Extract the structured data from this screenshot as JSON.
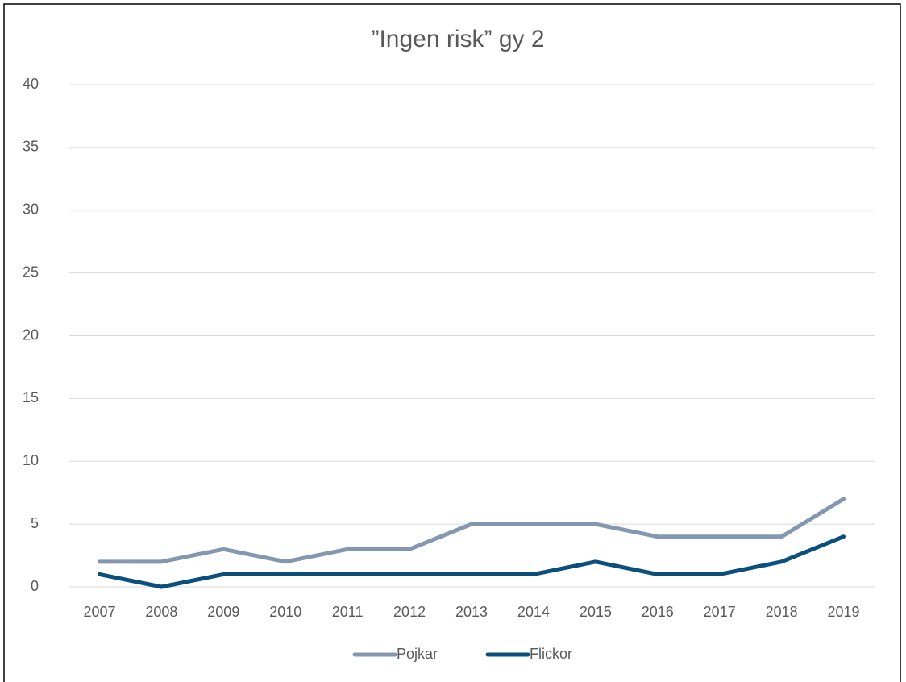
{
  "chart_data": {
    "type": "line",
    "title": "”Ingen risk” gy 2",
    "categories": [
      "2007",
      "2008",
      "2009",
      "2010",
      "2011",
      "2012",
      "2013",
      "2014",
      "2015",
      "2016",
      "2017",
      "2018",
      "2019"
    ],
    "series": [
      {
        "name": "Pojkar",
        "color": "#8497b0",
        "values": [
          2,
          2,
          3,
          2,
          3,
          3,
          5,
          5,
          5,
          4,
          4,
          4,
          7
        ]
      },
      {
        "name": "Flickor",
        "color": "#0b4f7c",
        "values": [
          1,
          0,
          1,
          1,
          1,
          1,
          1,
          1,
          2,
          1,
          1,
          2,
          4
        ]
      }
    ],
    "ylim": [
      0,
      40
    ],
    "yticks": [
      0,
      5,
      10,
      15,
      20,
      25,
      30,
      35,
      40
    ],
    "grid": true,
    "legend": "bottom"
  }
}
